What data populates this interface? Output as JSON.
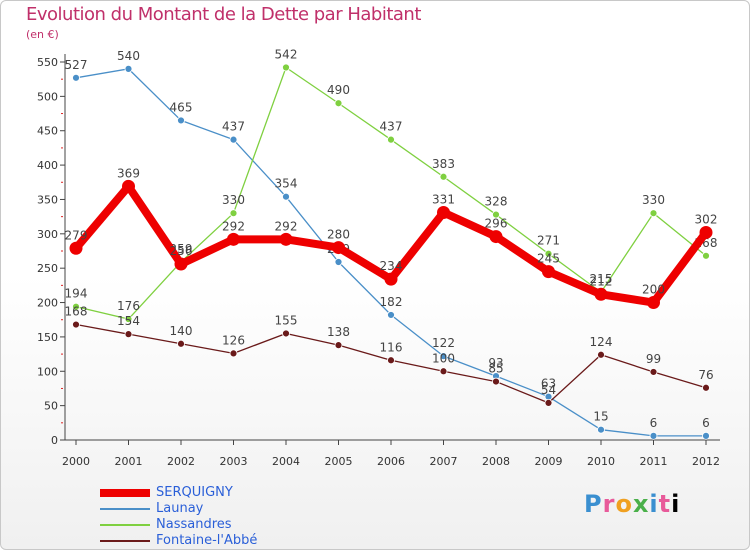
{
  "chart_data": {
    "type": "line",
    "title": "Evolution du Montant de la Dette par Habitant",
    "subtitle": "(en €)",
    "x": [
      "2000",
      "2001",
      "2002",
      "2003",
      "2004",
      "2005",
      "2006",
      "2007",
      "2008",
      "2009",
      "2010",
      "2011",
      "2012"
    ],
    "ylim": [
      0,
      550
    ],
    "yticks": [
      0,
      50,
      100,
      150,
      200,
      250,
      300,
      350,
      400,
      450,
      500,
      550
    ],
    "grid": false,
    "legend_position": "bottom-left",
    "series": [
      {
        "name": "SERQUIGNY",
        "color": "#ee0000",
        "values": [
          279,
          369,
          256,
          292,
          292,
          280,
          234,
          331,
          296,
          245,
          212,
          200,
          302
        ]
      },
      {
        "name": "Launay",
        "color": "#4a8fc8",
        "values": [
          527,
          540,
          465,
          437,
          354,
          259,
          182,
          122,
          93,
          63,
          15,
          6,
          6
        ]
      },
      {
        "name": "Nassandres",
        "color": "#7fd040",
        "values": [
          194,
          176,
          259,
          330,
          542,
          490,
          437,
          383,
          328,
          271,
          215,
          330,
          268
        ]
      },
      {
        "name": "Fontaine-l'Abbé",
        "color": "#6a1a1a",
        "values": [
          168,
          154,
          140,
          126,
          155,
          138,
          116,
          100,
          85,
          54,
          124,
          99,
          76
        ]
      }
    ]
  },
  "logo": {
    "letters": [
      "P",
      "r",
      "o",
      "x",
      "i",
      "t",
      "i"
    ]
  }
}
